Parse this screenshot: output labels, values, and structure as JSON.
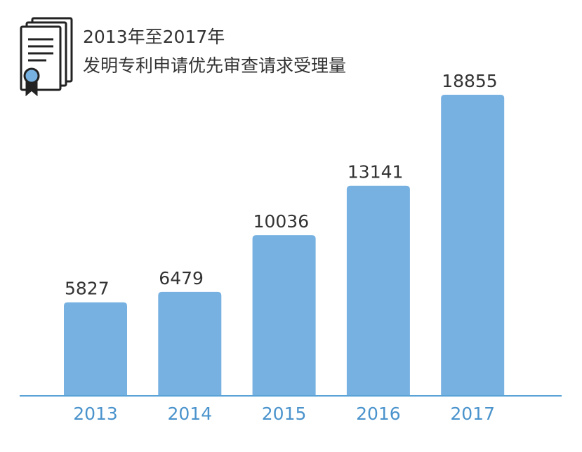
{
  "chart_data": {
    "type": "bar",
    "title": "2013年至2017年",
    "subtitle": "发明专利申请优先审查请求受理量",
    "categories": [
      "2013",
      "2014",
      "2015",
      "2016",
      "2017"
    ],
    "values": [
      5827,
      6479,
      10036,
      13141,
      18855
    ],
    "color": "#77b1e1"
  }
}
